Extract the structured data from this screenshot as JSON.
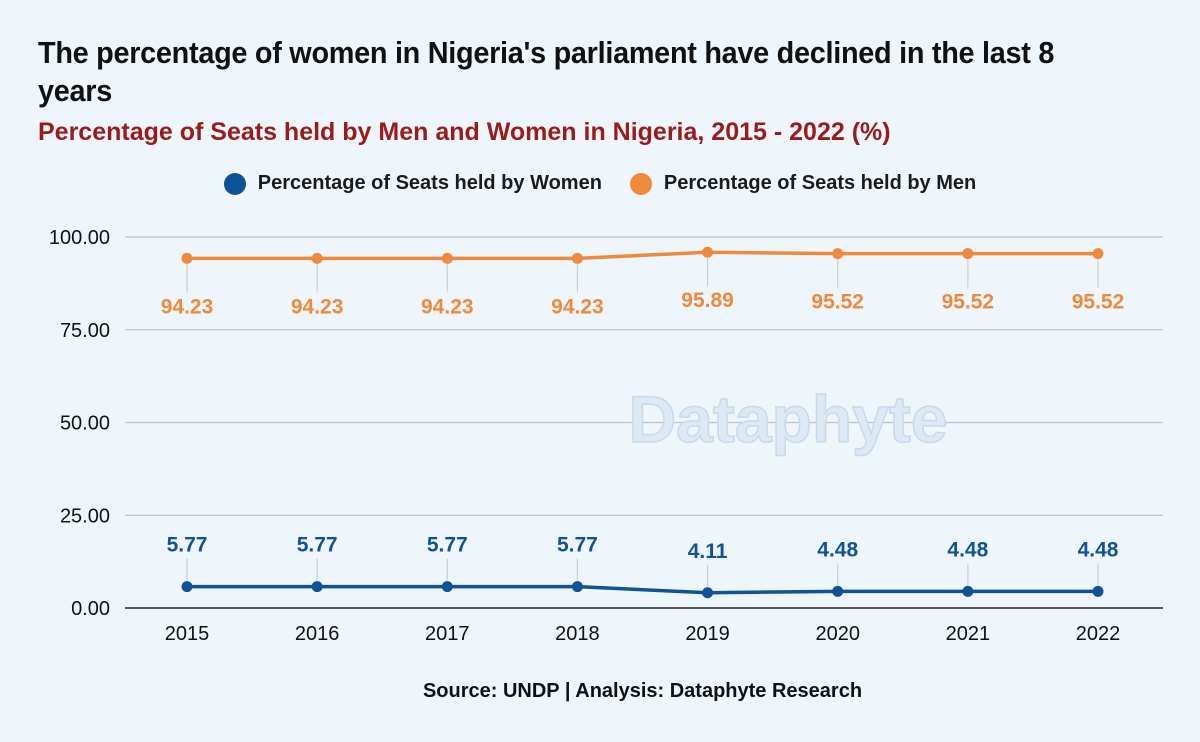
{
  "title": "The percentage of women in Nigeria's parliament have declined in the last 8 years",
  "subtitle": "Percentage of Seats held by Men and Women in Nigeria, 2015 - 2022 (%)",
  "source": "Source: UNDP | Analysis: Dataphyte Research",
  "watermark": "Dataphyte",
  "chart_data": {
    "type": "line",
    "x": [
      "2015",
      "2016",
      "2017",
      "2018",
      "2019",
      "2020",
      "2021",
      "2022"
    ],
    "ylim": [
      0,
      100
    ],
    "yticks": [
      "0.00",
      "25.00",
      "50.00",
      "75.00",
      "100.00"
    ],
    "grid": true,
    "legend_position": "top",
    "series": [
      {
        "name": "Percentage of Seats held by Women",
        "color": "#0f5296",
        "values": [
          5.77,
          5.77,
          5.77,
          5.77,
          4.11,
          4.48,
          4.48,
          4.48
        ],
        "labels": [
          "5.77",
          "5.77",
          "5.77",
          "5.77",
          "4.11",
          "4.48",
          "4.48",
          "4.48"
        ]
      },
      {
        "name": "Percentage of Seats held by Men",
        "color": "#ef8a3c",
        "values": [
          94.23,
          94.23,
          94.23,
          94.23,
          95.89,
          95.52,
          95.52,
          95.52
        ],
        "labels": [
          "94.23",
          "94.23",
          "94.23",
          "94.23",
          "95.89",
          "95.52",
          "95.52",
          "95.52"
        ]
      }
    ]
  }
}
